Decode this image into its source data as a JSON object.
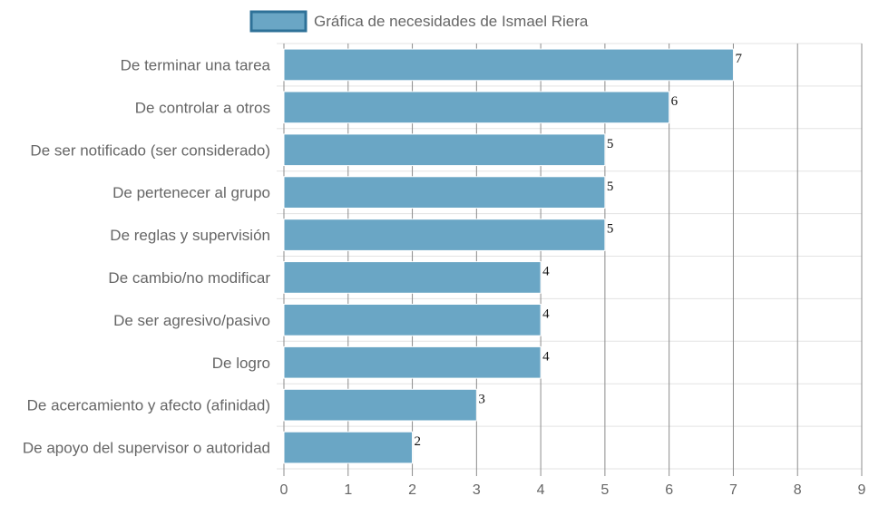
{
  "chart_data": {
    "type": "bar",
    "orientation": "horizontal",
    "categories": [
      "De terminar una tarea",
      "De controlar a otros",
      "De ser notificado (ser considerado)",
      "De pertenecer al grupo",
      "De reglas y supervisión",
      "De cambio/no modificar",
      "De ser agresivo/pasivo",
      "De logro",
      "De acercamiento y afecto (afinidad)",
      "De apoyo del supervisor o autoridad"
    ],
    "series": [
      {
        "name": "Gráfica de necesidades de Ismael Riera",
        "values": [
          7,
          6,
          5,
          5,
          5,
          4,
          4,
          4,
          3,
          2
        ]
      }
    ],
    "xlim": [
      0,
      9
    ],
    "x_ticks": [
      "0",
      "1",
      "2",
      "3",
      "4",
      "5",
      "6",
      "7",
      "8",
      "9"
    ],
    "grid": true,
    "legend_position": "top",
    "data_labels": true,
    "colors": {
      "bar_fill": "#6aa6c5",
      "bar_border": "#ffffff",
      "legend_border": "#2e7198",
      "grid": "#e3e3e3",
      "grid_vertical": "#8c8c8c"
    }
  }
}
